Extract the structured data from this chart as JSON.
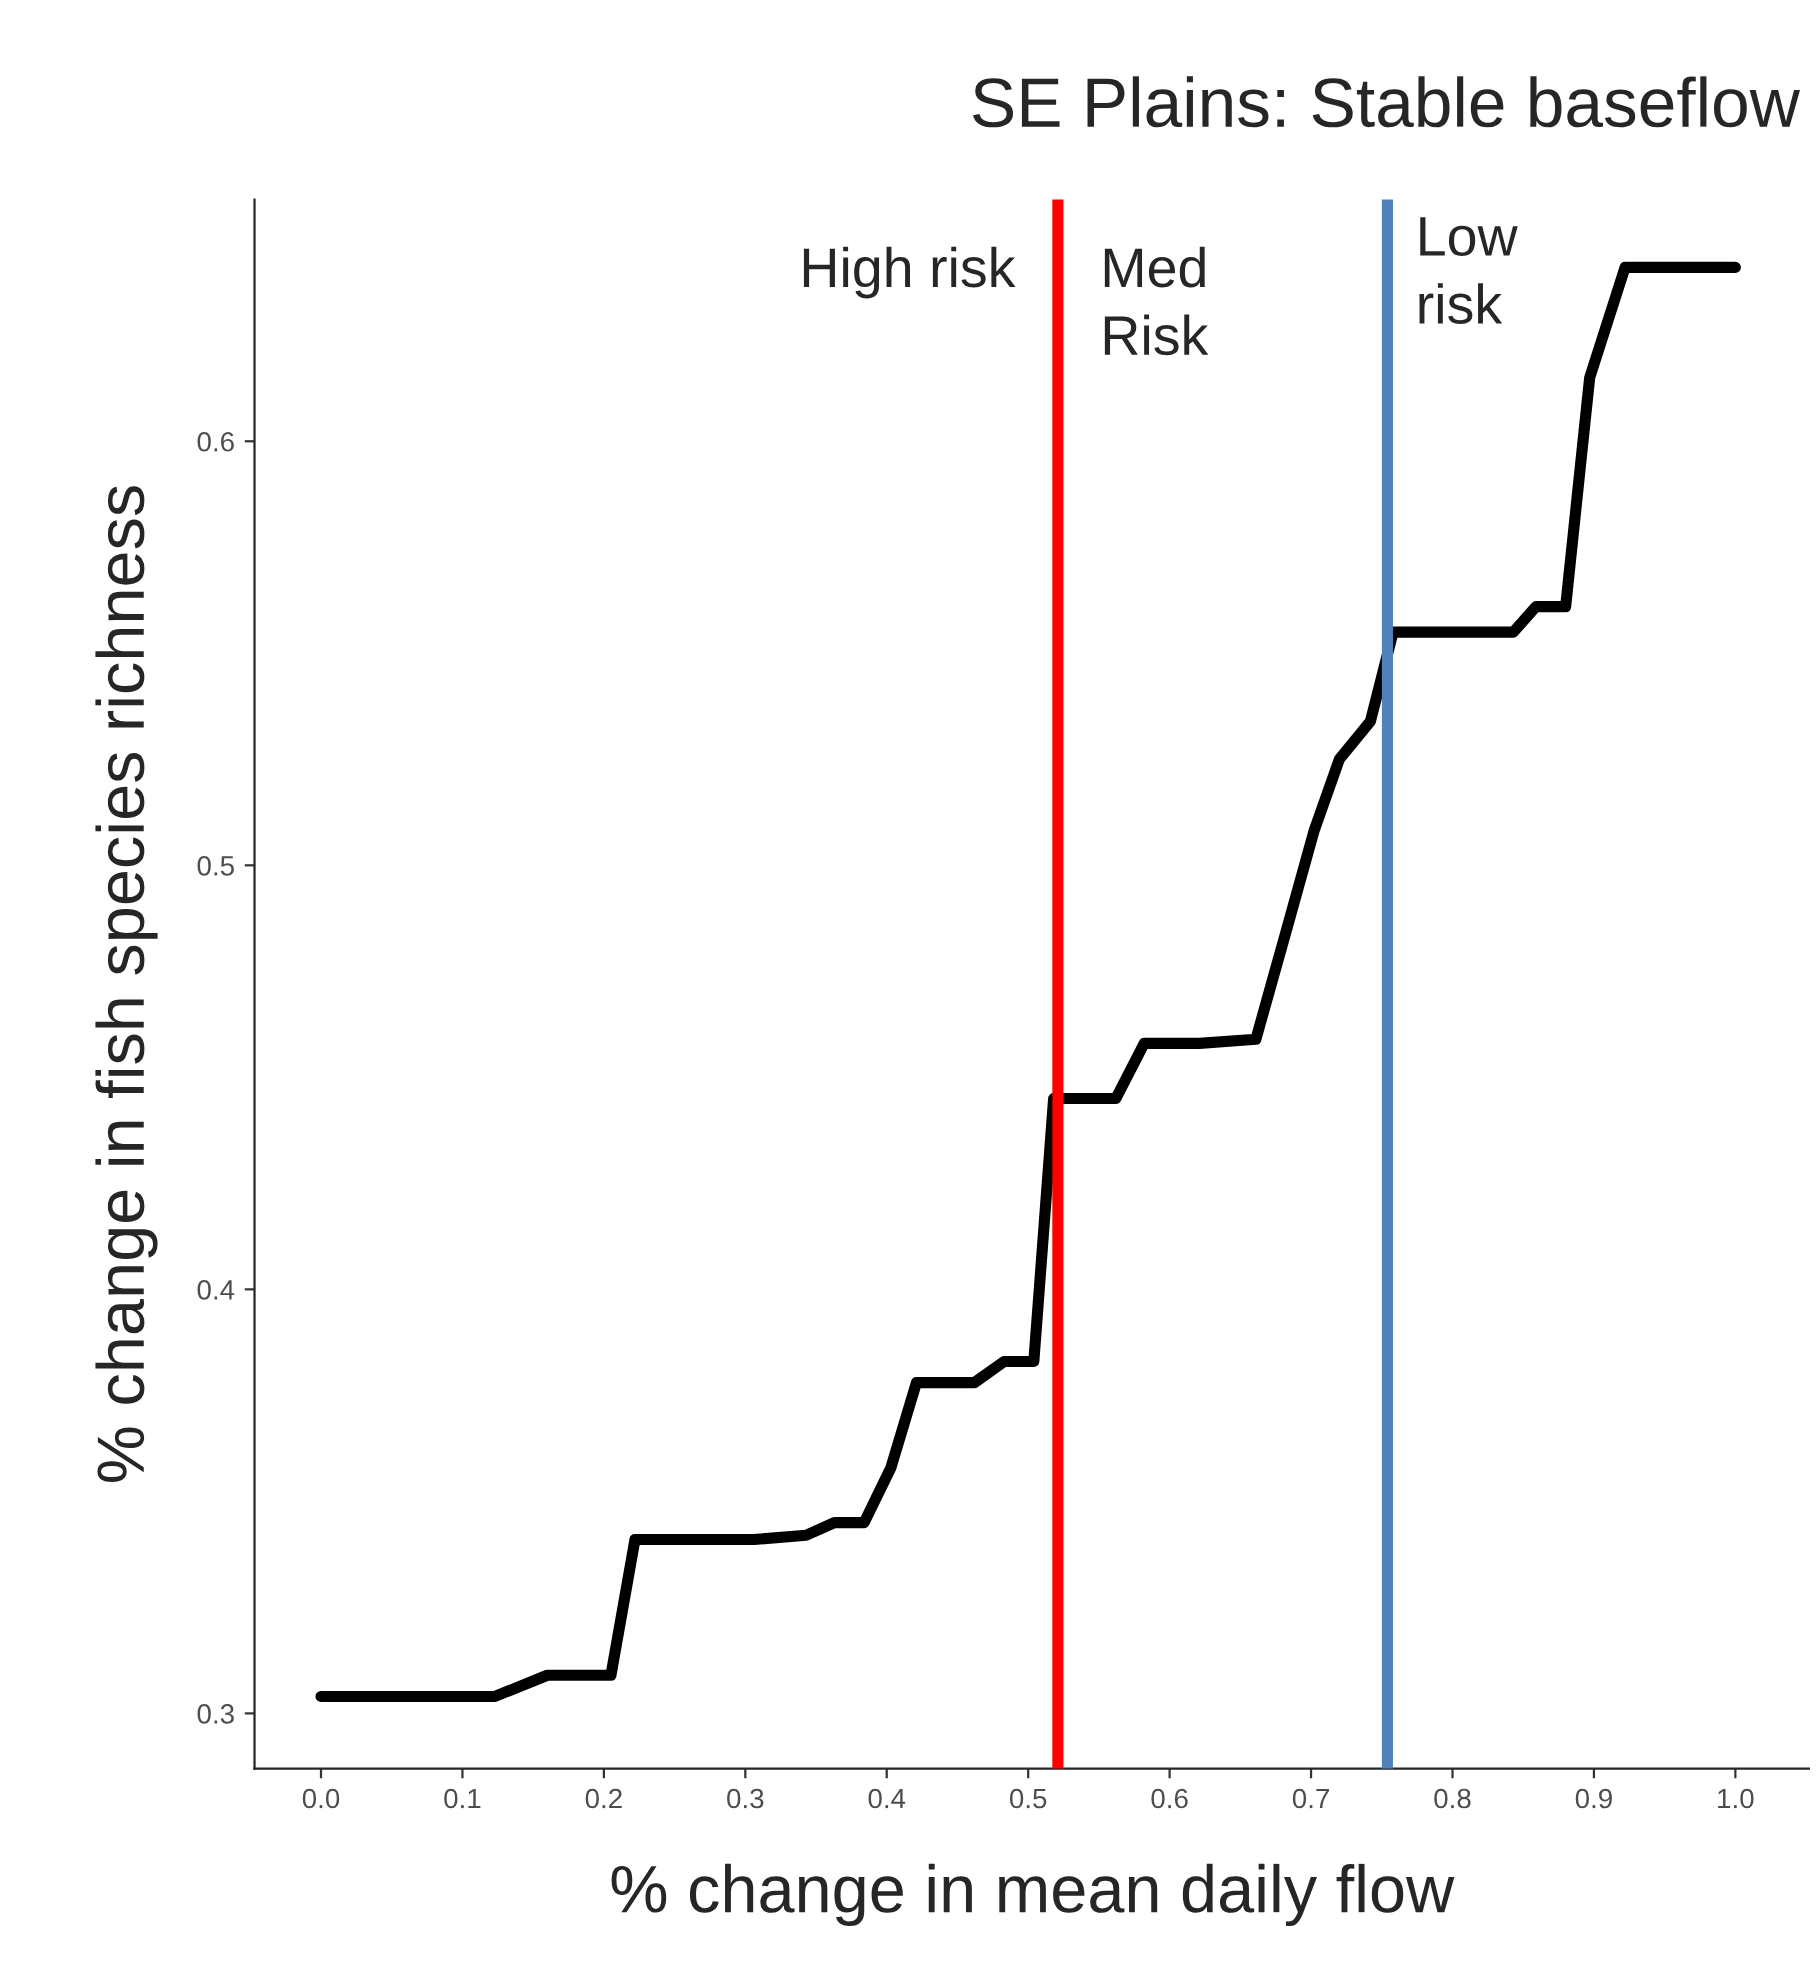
{
  "chart_data": {
    "type": "line",
    "title": "SE Plains: Stable baseflow",
    "xlabel": "% change in mean daily flow",
    "ylabel": "% change in fish species richness",
    "series": [
      {
        "color": "#000000",
        "x": [
          0.0,
          0.123,
          0.16,
          0.205,
          0.222,
          0.306,
          0.343,
          0.363,
          0.384,
          0.403,
          0.421,
          0.462,
          0.483,
          0.504,
          0.518,
          0.562,
          0.582,
          0.621,
          0.661,
          0.682,
          0.702,
          0.72,
          0.742,
          0.758,
          0.843,
          0.859,
          0.88,
          0.897,
          0.922,
          1.0
        ],
        "values": [
          0.304,
          0.304,
          0.309,
          0.309,
          0.341,
          0.341,
          0.342,
          0.345,
          0.345,
          0.358,
          0.378,
          0.378,
          0.383,
          0.383,
          0.445,
          0.445,
          0.458,
          0.458,
          0.459,
          0.484,
          0.508,
          0.525,
          0.534,
          0.555,
          0.555,
          0.561,
          0.561,
          0.615,
          0.641,
          0.641
        ]
      }
    ],
    "ref_lines": [
      {
        "axis": "x",
        "value": 0.521,
        "color": "#ff0000"
      },
      {
        "axis": "x",
        "value": 0.754,
        "color": "#4f81bd"
      }
    ],
    "annotations": [
      "High risk",
      "Med\nRisk",
      "Low\nrisk"
    ],
    "xlim": [
      -0.047,
      1.052
    ],
    "ylim": [
      0.287,
      0.657
    ],
    "xticks": [
      {
        "value": 0.0,
        "label": "0.0"
      },
      0.1,
      0.2,
      0.3,
      0.4,
      0.5,
      0.6,
      0.7,
      0.8,
      0.9,
      {
        "value": 1.0,
        "label": "1.0"
      }
    ],
    "yticks": [
      0.3,
      0.4,
      0.5,
      0.6
    ],
    "grid": false,
    "legend": false,
    "marker": "none",
    "line_style": "solid"
  }
}
